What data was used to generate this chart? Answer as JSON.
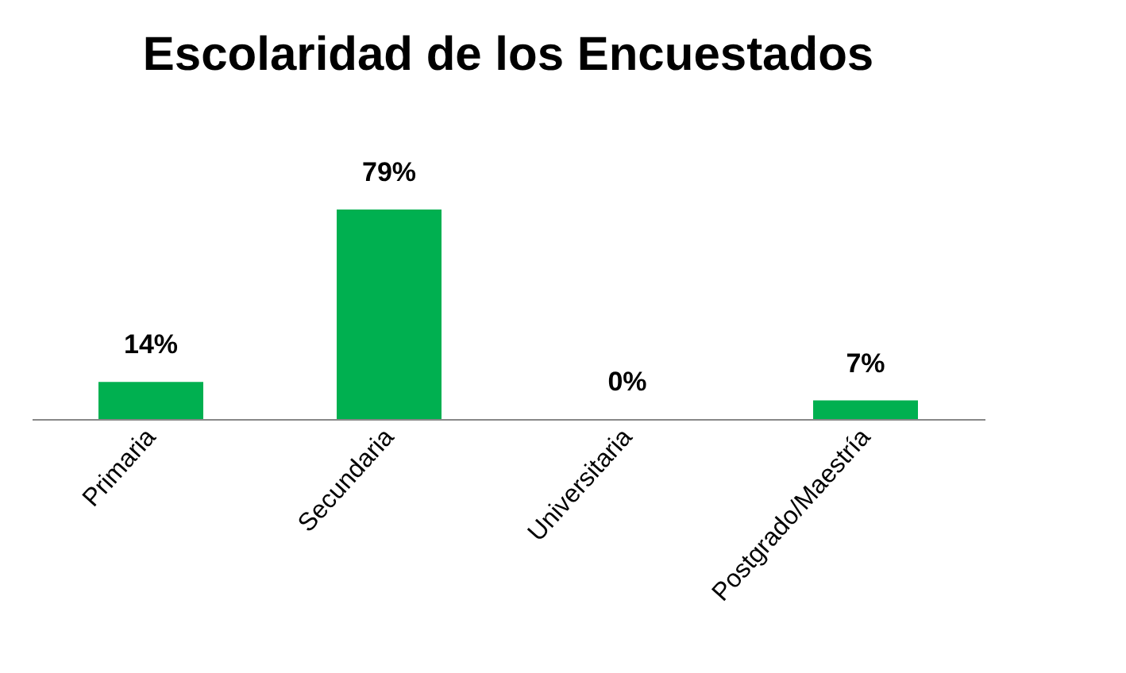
{
  "chart_data": {
    "type": "bar",
    "title": "Escolaridad de los Encuestados",
    "categories": [
      "Primaria",
      "Secundaria",
      "Universitaria",
      "Postgrado/Maestría"
    ],
    "values": [
      14,
      79,
      0,
      7
    ],
    "value_labels": [
      "14%",
      "79%",
      "0%",
      "7%"
    ],
    "color": "#00b050"
  }
}
